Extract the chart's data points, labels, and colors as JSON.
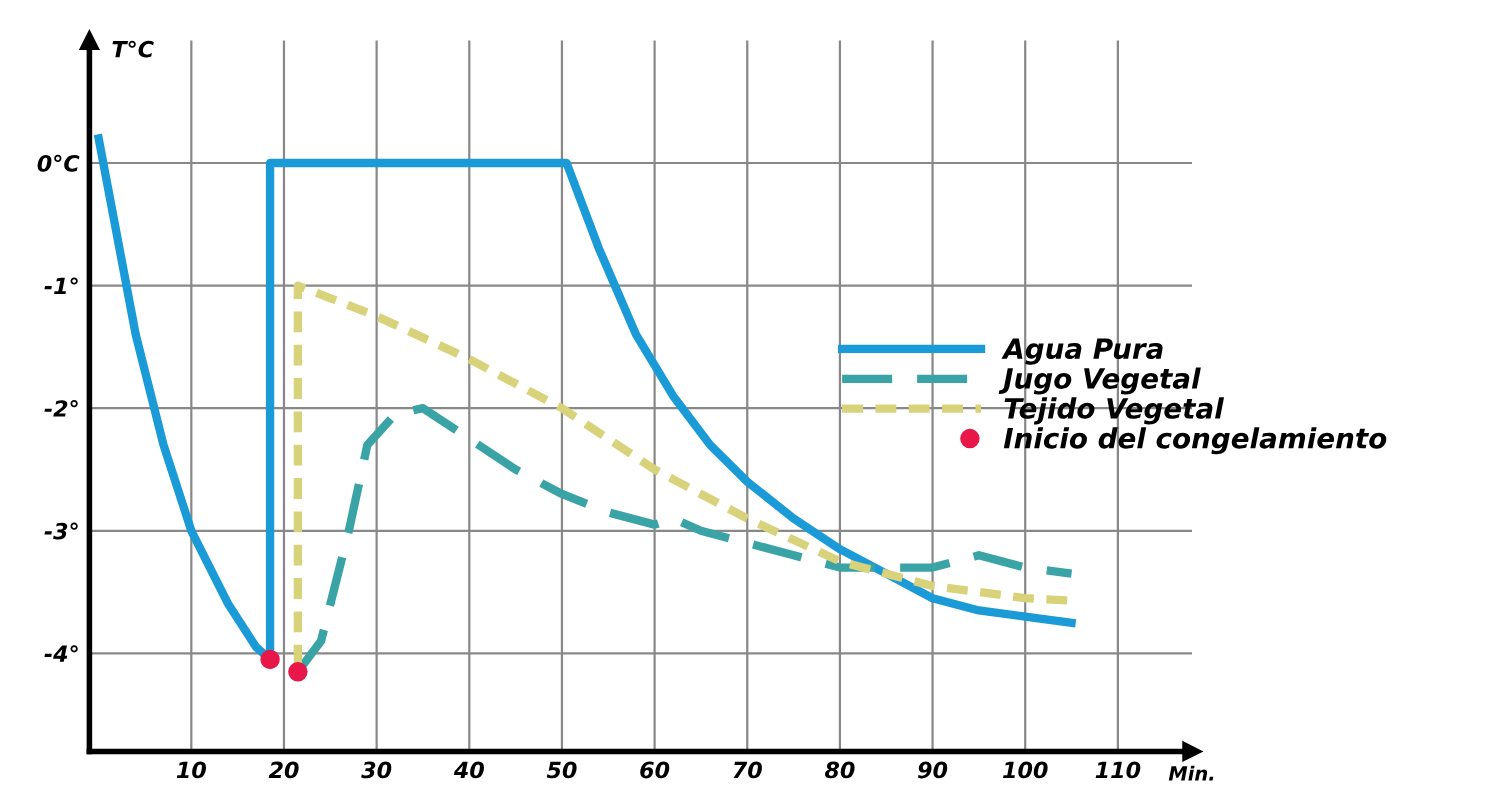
{
  "chart_data": {
    "type": "line",
    "xlabel": "Min.",
    "ylabel": "T°C",
    "xlim": [
      -1,
      118
    ],
    "ylim": [
      -4.8,
      1
    ],
    "xticks": [
      10,
      20,
      30,
      40,
      50,
      60,
      70,
      80,
      90,
      100,
      110
    ],
    "yticks": [
      {
        "value": 0,
        "label": "0°C"
      },
      {
        "value": -1,
        "label": "-1°"
      },
      {
        "value": -2,
        "label": "-2°"
      },
      {
        "value": -3,
        "label": "-3°"
      },
      {
        "value": -4,
        "label": "-4°"
      }
    ],
    "grid": true,
    "legend": "right",
    "series": [
      {
        "name": "Agua Pura",
        "color": "#1a9ad6",
        "line_style": "solid",
        "x": [
          0,
          2,
          4,
          7,
          10,
          14,
          17,
          18.5,
          18.5,
          50.5,
          54,
          58,
          62,
          66,
          70,
          75,
          80,
          85,
          90,
          95,
          100,
          105
        ],
        "values": [
          0.2,
          -0.6,
          -1.4,
          -2.3,
          -3.0,
          -3.6,
          -3.95,
          -4.05,
          0,
          0,
          -0.7,
          -1.4,
          -1.9,
          -2.3,
          -2.6,
          -2.9,
          -3.15,
          -3.35,
          -3.55,
          -3.65,
          -3.7,
          -3.75
        ]
      },
      {
        "name": "Jugo Vegetal",
        "color": "#3aa3a6",
        "line_style": "dashed",
        "x": [
          21.5,
          24,
          27,
          29,
          32,
          35,
          40,
          45,
          50,
          55,
          60,
          62,
          65,
          70,
          75,
          80,
          85,
          90,
          95,
          100,
          105
        ],
        "values": [
          -4.15,
          -3.9,
          -3.0,
          -2.3,
          -2.05,
          -2.0,
          -2.25,
          -2.5,
          -2.7,
          -2.85,
          -2.95,
          -2.9,
          -3.0,
          -3.1,
          -3.2,
          -3.3,
          -3.3,
          -3.3,
          -3.2,
          -3.3,
          -3.35
        ]
      },
      {
        "name": "Tejido Vegetal",
        "color": "#d8d27a",
        "line_style": "dotted",
        "x": [
          21.5,
          21.5,
          30,
          40,
          50,
          60,
          70,
          80,
          85,
          90,
          95,
          100,
          105
        ],
        "values": [
          -4.1,
          -1.0,
          -1.25,
          -1.6,
          -2.0,
          -2.5,
          -2.9,
          -3.25,
          -3.35,
          -3.45,
          -3.5,
          -3.55,
          -3.57
        ]
      },
      {
        "name": "Inicio del congelamiento",
        "type": "scatter",
        "marker": "circle",
        "color": "#e8174a",
        "x": [
          18.5,
          21.5
        ],
        "values": [
          -4.05,
          -4.15
        ]
      }
    ]
  }
}
